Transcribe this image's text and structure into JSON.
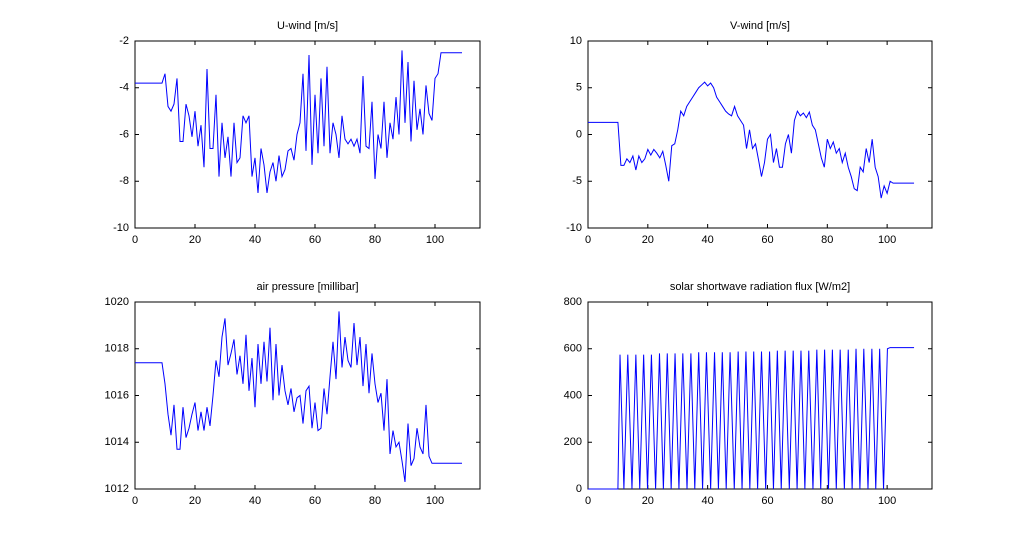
{
  "chart_data": [
    {
      "type": "line",
      "title": "U-wind [m/s]",
      "color": "#0000ff",
      "x": [
        0,
        9,
        10,
        11,
        12,
        13,
        14,
        15,
        16,
        17,
        18,
        19,
        20,
        21,
        22,
        23,
        24,
        25,
        26,
        27,
        28,
        29,
        30,
        31,
        32,
        33,
        34,
        35,
        36,
        37,
        38,
        39,
        40,
        41,
        42,
        43,
        44,
        45,
        46,
        47,
        48,
        49,
        50,
        51,
        52,
        53,
        54,
        55,
        56,
        57,
        58,
        59,
        60,
        61,
        62,
        63,
        64,
        65,
        66,
        67,
        68,
        69,
        70,
        71,
        72,
        73,
        74,
        75,
        76,
        77,
        78,
        79,
        80,
        81,
        82,
        83,
        84,
        85,
        86,
        87,
        88,
        89,
        90,
        91,
        92,
        93,
        94,
        95,
        96,
        97,
        98,
        99,
        100,
        101,
        102,
        109
      ],
      "values": [
        -3.8,
        -3.8,
        -3.4,
        -4.8,
        -5,
        -4.7,
        -3.6,
        -6.3,
        -6.3,
        -4.7,
        -5.2,
        -6.1,
        -5,
        -6.5,
        -5.6,
        -7.4,
        -3.2,
        -6.6,
        -6.6,
        -4.3,
        -7.8,
        -5.5,
        -7,
        -6.1,
        -7.8,
        -5.5,
        -7.2,
        -7,
        -5.2,
        -5.5,
        -5.2,
        -7.8,
        -7,
        -8.5,
        -6.6,
        -7.3,
        -8.5,
        -7.6,
        -7.2,
        -8,
        -6.9,
        -7.8,
        -7.5,
        -6.7,
        -6.6,
        -7.1,
        -6,
        -5.5,
        -3.4,
        -6.7,
        -2.6,
        -7.3,
        -4.3,
        -6.8,
        -3.6,
        -6.5,
        -3.1,
        -6.8,
        -5.5,
        -6,
        -7,
        -5.2,
        -6.2,
        -6.4,
        -6.2,
        -6.5,
        -6.2,
        -6.8,
        -3.5,
        -6.5,
        -6.6,
        -4.6,
        -7.9,
        -6,
        -6.6,
        -4.6,
        -7,
        -5.5,
        -6.2,
        -4.4,
        -6,
        -2.4,
        -5.5,
        -2.9,
        -6.3,
        -3.7,
        -5.8,
        -4.9,
        -6,
        -3.9,
        -5.1,
        -5.4,
        -3.6,
        -3.4,
        -2.5,
        -2.5
      ],
      "xlim": [
        0,
        115
      ],
      "xticks": [
        0,
        20,
        40,
        60,
        80,
        100
      ],
      "ylim": [
        -10,
        -2
      ],
      "yticks": [
        -10,
        -8,
        -6,
        -4,
        -2
      ]
    },
    {
      "type": "line",
      "title": "V-wind [m/s]",
      "color": "#0000ff",
      "x": [
        0,
        10,
        11,
        12,
        13,
        14,
        15,
        16,
        17,
        18,
        19,
        20,
        21,
        22,
        23,
        24,
        25,
        26,
        27,
        28,
        29,
        30,
        31,
        32,
        33,
        34,
        35,
        36,
        37,
        38,
        39,
        40,
        41,
        42,
        43,
        44,
        45,
        46,
        47,
        48,
        49,
        50,
        51,
        52,
        53,
        54,
        55,
        56,
        57,
        58,
        59,
        60,
        61,
        62,
        63,
        64,
        65,
        66,
        67,
        68,
        69,
        70,
        71,
        72,
        73,
        74,
        75,
        76,
        77,
        78,
        79,
        80,
        81,
        82,
        83,
        84,
        85,
        86,
        87,
        88,
        89,
        90,
        91,
        92,
        93,
        94,
        95,
        96,
        97,
        98,
        99,
        100,
        101,
        102,
        109
      ],
      "values": [
        1.3,
        1.3,
        -3.3,
        -3.3,
        -2.6,
        -3,
        -2.3,
        -3.8,
        -2.3,
        -3,
        -2.6,
        -1.6,
        -2.2,
        -1.6,
        -2,
        -2.5,
        -1.8,
        -3.3,
        -5,
        -1.2,
        -1,
        0.5,
        2.5,
        2,
        3,
        3.5,
        4,
        4.5,
        5,
        5.3,
        5.6,
        5.2,
        5.5,
        5,
        4,
        3.5,
        3,
        2.5,
        2.2,
        2,
        3,
        2,
        1.5,
        1,
        -1.5,
        0.5,
        -1.5,
        -1,
        -2.7,
        -4.5,
        -3,
        -0.5,
        0,
        -3,
        -1.5,
        -3.5,
        -3.5,
        -1,
        0,
        -2,
        1.5,
        2.5,
        2,
        2.3,
        1.8,
        2.4,
        1,
        0.5,
        -1,
        -2.5,
        -3.5,
        -0.5,
        -1.5,
        -0.8,
        -2,
        -1.5,
        -3,
        -2,
        -3.5,
        -4.5,
        -5.8,
        -6,
        -3.5,
        -4,
        -1.5,
        -3,
        -0.5,
        -3.5,
        -4.5,
        -6.8,
        -5.5,
        -6.3,
        -5,
        -5.2,
        -5.2
      ],
      "xlim": [
        0,
        115
      ],
      "xticks": [
        0,
        20,
        40,
        60,
        80,
        100
      ],
      "ylim": [
        -10,
        10
      ],
      "yticks": [
        -10,
        -5,
        0,
        5,
        10
      ]
    },
    {
      "type": "line",
      "title": "air pressure [millibar]",
      "color": "#0000ff",
      "x": [
        0,
        9,
        10,
        11,
        12,
        13,
        14,
        15,
        16,
        17,
        18,
        19,
        20,
        21,
        22,
        23,
        24,
        25,
        26,
        27,
        28,
        29,
        30,
        31,
        32,
        33,
        34,
        35,
        36,
        37,
        38,
        39,
        40,
        41,
        42,
        43,
        44,
        45,
        46,
        47,
        48,
        49,
        50,
        51,
        52,
        53,
        54,
        55,
        56,
        57,
        58,
        59,
        60,
        61,
        62,
        63,
        64,
        65,
        66,
        67,
        68,
        69,
        70,
        71,
        72,
        73,
        74,
        75,
        76,
        77,
        78,
        79,
        80,
        81,
        82,
        83,
        84,
        85,
        86,
        87,
        88,
        89,
        90,
        91,
        92,
        93,
        94,
        95,
        96,
        97,
        98,
        99,
        109
      ],
      "values": [
        1017.4,
        1017.4,
        1016.5,
        1015.2,
        1014.3,
        1015.6,
        1013.7,
        1013.7,
        1015.5,
        1014.2,
        1014.6,
        1015.2,
        1015.7,
        1014.5,
        1015.3,
        1014.5,
        1015.5,
        1014.7,
        1016,
        1017.5,
        1016.8,
        1018.5,
        1019.3,
        1017.3,
        1017.8,
        1018.4,
        1016.9,
        1017.7,
        1016.5,
        1018.6,
        1016.2,
        1017.6,
        1015.5,
        1018.2,
        1016.5,
        1018.3,
        1016.6,
        1018.9,
        1015.8,
        1018.2,
        1016,
        1017.3,
        1016.2,
        1015.6,
        1016.3,
        1015.3,
        1015.9,
        1016,
        1014.8,
        1016.2,
        1016.4,
        1014.6,
        1015.7,
        1014.5,
        1014.6,
        1016.3,
        1015.2,
        1016.8,
        1018.3,
        1016.7,
        1019.6,
        1017.2,
        1018.5,
        1017.5,
        1017.2,
        1019.1,
        1017.3,
        1018.5,
        1016.4,
        1018.2,
        1016.1,
        1017.8,
        1016.5,
        1015.7,
        1016.1,
        1014.5,
        1016.7,
        1013.5,
        1014.5,
        1013.8,
        1014,
        1013.2,
        1012.3,
        1014.8,
        1013,
        1013.3,
        1014.6,
        1013.8,
        1013.5,
        1015.6,
        1013.4,
        1013.1,
        1013.1
      ],
      "xlim": [
        0,
        115
      ],
      "xticks": [
        0,
        20,
        40,
        60,
        80,
        100
      ],
      "ylim": [
        1012,
        1020
      ],
      "yticks": [
        1012,
        1014,
        1016,
        1018,
        1020
      ]
    },
    {
      "type": "line",
      "title": "solar shortwave radiation flux [W/m2]",
      "color": "#0000ff",
      "x": [
        0,
        10.0,
        10.7,
        12.0,
        13.3,
        14.7,
        16.0,
        17.3,
        18.6,
        19.9,
        21.2,
        22.6,
        23.9,
        25.2,
        26.5,
        27.8,
        29.1,
        30.4,
        31.7,
        33.1,
        34.4,
        35.7,
        37.0,
        38.3,
        39.6,
        41.0,
        42.3,
        43.6,
        44.9,
        46.2,
        47.5,
        48.9,
        50.2,
        51.5,
        52.8,
        54.1,
        55.4,
        56.7,
        58.0,
        59.4,
        60.7,
        62.0,
        63.3,
        64.6,
        65.9,
        67.3,
        68.6,
        69.9,
        71.2,
        72.5,
        73.8,
        75.2,
        76.5,
        77.8,
        79.1,
        80.4,
        81.7,
        83.0,
        84.3,
        85.7,
        87.0,
        88.3,
        89.6,
        90.9,
        92.2,
        93.6,
        94.9,
        96.2,
        97.5,
        98.8,
        100.1,
        101,
        109
      ],
      "values": [
        0,
        0,
        575,
        0,
        575,
        0,
        575,
        0,
        575,
        0,
        575,
        0,
        580,
        0,
        580,
        0,
        580,
        0,
        580,
        0,
        580,
        0,
        585,
        0,
        585,
        0,
        585,
        0,
        585,
        0,
        585,
        0,
        588,
        0,
        588,
        0,
        588,
        0,
        588,
        0,
        588,
        0,
        592,
        0,
        592,
        0,
        592,
        0,
        592,
        0,
        592,
        0,
        596,
        0,
        596,
        0,
        596,
        0,
        596,
        0,
        596,
        0,
        600,
        0,
        600,
        0,
        600,
        0,
        600,
        0,
        600,
        605,
        605
      ],
      "xlim": [
        0,
        115
      ],
      "xticks": [
        0,
        20,
        40,
        60,
        80,
        100
      ],
      "ylim": [
        0,
        800
      ],
      "yticks": [
        0,
        200,
        400,
        600,
        800
      ]
    }
  ]
}
